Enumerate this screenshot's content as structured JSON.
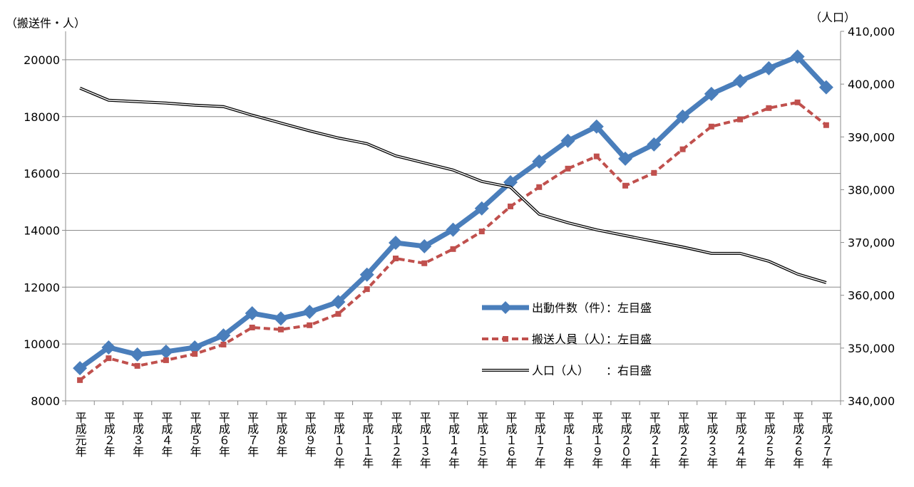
{
  "chart_data": {
    "type": "line",
    "y_label": "（搬送件・人）",
    "y2_label": "（人口）",
    "categories": [
      "平成元年",
      "平成２年",
      "平成３年",
      "平成４年",
      "平成５年",
      "平成６年",
      "平成７年",
      "平成８年",
      "平成９年",
      "平成１０年",
      "平成１１年",
      "平成１２年",
      "平成１３年",
      "平成１４年",
      "平成１５年",
      "平成１６年",
      "平成１７年",
      "平成１８年",
      "平成１９年",
      "平成２０年",
      "平成２１年",
      "平成２２年",
      "平成２３年",
      "平成２４年",
      "平成２５年",
      "平成２６年",
      "平成２７年"
    ],
    "series": [
      {
        "name": "出動件数（件）：左目盛",
        "color": "#4a7ebb",
        "style": "solid-diamond",
        "values": [
          9150,
          9880,
          9630,
          9730,
          9880,
          10300,
          11080,
          10900,
          11130,
          11480,
          12440,
          13560,
          13440,
          14020,
          14770,
          15690,
          16420,
          17150,
          17650,
          16520,
          17020,
          18000,
          18800,
          19250,
          19700,
          20110,
          19030
        ]
      },
      {
        "name": "搬送人員（人）：左目盛",
        "color": "#c0504d",
        "style": "dashed-square",
        "values": [
          8730,
          9500,
          9230,
          9430,
          9650,
          9980,
          10580,
          10510,
          10660,
          11060,
          11930,
          13010,
          12840,
          13340,
          13960,
          14840,
          15520,
          16170,
          16600,
          15570,
          16020,
          16850,
          17650,
          17900,
          18300,
          18500,
          17700
        ]
      },
      {
        "name": "人口（人）　　：右目盛",
        "color": "#000000",
        "style": "double",
        "axis": "y2",
        "values": [
          399240,
          396950,
          396680,
          396410,
          396000,
          395740,
          394120,
          392630,
          391150,
          389800,
          388720,
          386420,
          385070,
          383720,
          381570,
          380490,
          375360,
          373740,
          372390,
          371310,
          370230,
          369150,
          367940,
          367940,
          366450,
          364020,
          362400
        ]
      }
    ],
    "ylim": [
      8000,
      21000
    ],
    "yticks": [
      8000,
      10000,
      12000,
      14000,
      16000,
      18000,
      20000
    ],
    "y2lim": [
      340000,
      410000
    ],
    "y2ticks": [
      {
        "value": 340000,
        "label": "340,000"
      },
      {
        "value": 350000,
        "label": "350,000"
      },
      {
        "value": 360000,
        "label": "360,000"
      },
      {
        "value": 370000,
        "label": "370,000"
      },
      {
        "value": 380000,
        "label": "380,000"
      },
      {
        "value": 390000,
        "label": "390,000"
      },
      {
        "value": 400000,
        "label": "400,000"
      },
      {
        "value": 410000,
        "label": "410,000"
      }
    ],
    "grid": true
  }
}
